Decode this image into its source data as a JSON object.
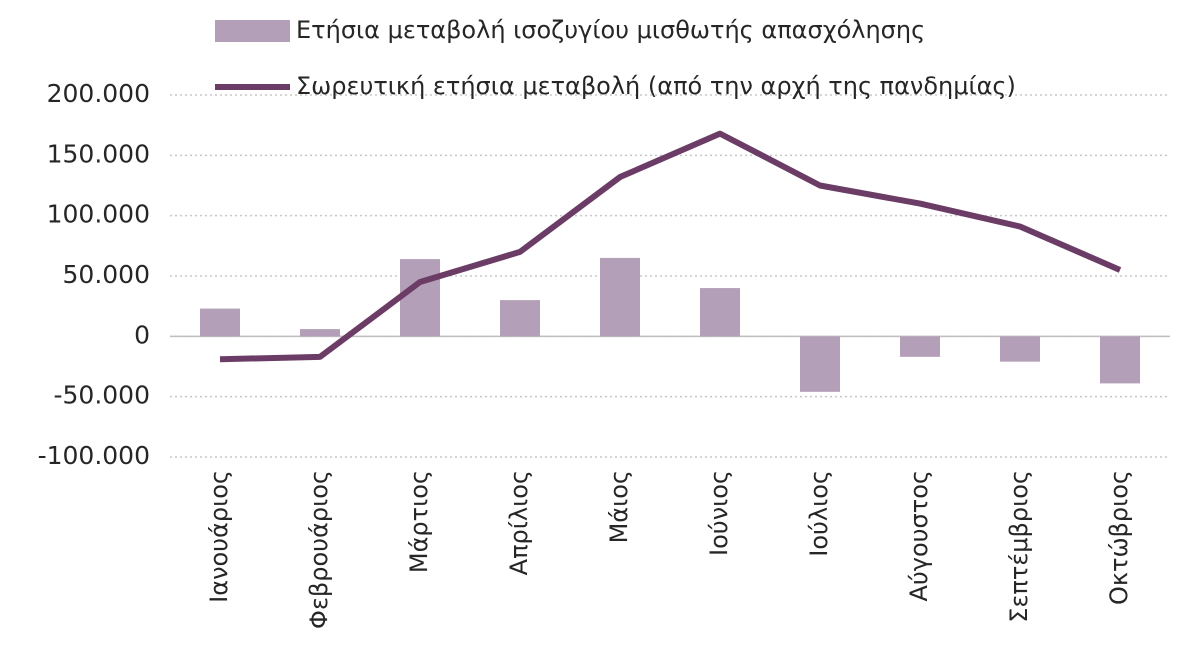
{
  "chart_data": {
    "type": "bar_line",
    "categories": [
      "Ιανουάριος",
      "Φεβρουάριος",
      "Μάρτιος",
      "Απρίλιος",
      "Μάιος",
      "Ιούνιος",
      "Ιούλιος",
      "Αύγουστος",
      "Σεπτέμβριος",
      "Οκτώβριος"
    ],
    "series": [
      {
        "name": "Ετήσια μεταβολή ισοζυγίου μισθωτής απασχόλησης",
        "type": "bar",
        "color": "#b3a0b8",
        "values": [
          23000,
          6000,
          64000,
          30000,
          65000,
          40000,
          -46000,
          -17000,
          -21000,
          -39000
        ]
      },
      {
        "name": "Σωρευτική ετήσια μεταβολή (από την αρχή της πανδημίας)",
        "type": "line",
        "color": "#6b3d66",
        "values": [
          -19000,
          -17000,
          45000,
          70000,
          132000,
          168000,
          125000,
          110000,
          91000,
          55000
        ]
      }
    ],
    "ylim": [
      -100000,
      200000
    ],
    "yticks": [
      {
        "value": -100000,
        "label": "-100.000"
      },
      {
        "value": -50000,
        "label": "-50.000"
      },
      0,
      {
        "value": 50000,
        "label": "50.000"
      },
      {
        "value": 100000,
        "label": "100.000"
      },
      {
        "value": 150000,
        "label": "150.000"
      },
      {
        "value": 200000,
        "label": "200.000"
      }
    ],
    "grid": true
  }
}
